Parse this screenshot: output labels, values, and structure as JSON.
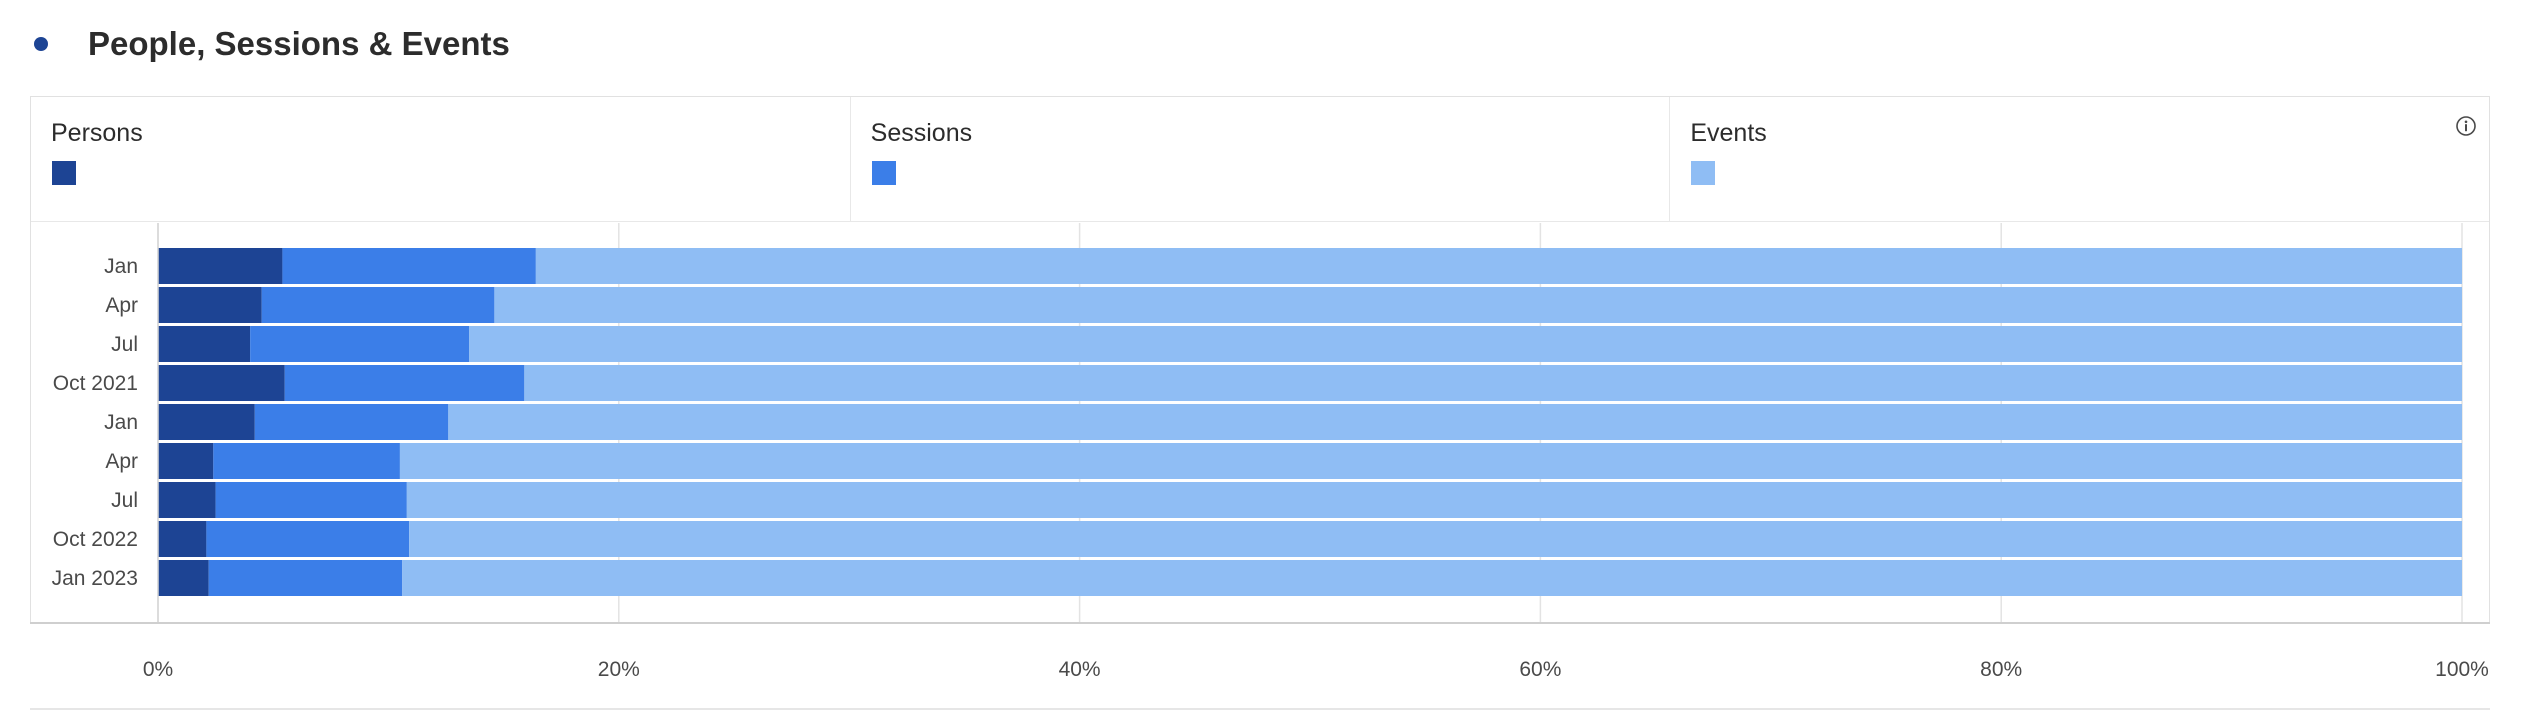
{
  "header": {
    "title": "People, Sessions & Events"
  },
  "legend": {
    "items": [
      {
        "label": "Persons",
        "color": "#1d4494"
      },
      {
        "label": "Sessions",
        "color": "#3b7ee8"
      },
      {
        "label": "Events",
        "color": "#8fbdf4"
      }
    ],
    "info_icon": "info-icon"
  },
  "chart_data": {
    "type": "bar",
    "orientation": "horizontal",
    "stacked": "percent",
    "categories": [
      "Jan",
      "Apr",
      "Jul",
      "Oct 2021",
      "Jan",
      "Apr",
      "Jul",
      "Oct 2022",
      "Jan 2023"
    ],
    "series": [
      {
        "name": "Persons",
        "color": "#1d4494",
        "values": [
          5.4,
          4.5,
          4.0,
          5.5,
          4.2,
          2.4,
          2.5,
          2.1,
          2.2
        ]
      },
      {
        "name": "Sessions",
        "color": "#3b7ee8",
        "values": [
          11.0,
          10.1,
          9.5,
          10.4,
          8.4,
          8.1,
          8.3,
          8.8,
          8.4
        ]
      },
      {
        "name": "Events",
        "color": "#8fbdf4",
        "values": [
          83.6,
          85.4,
          86.5,
          84.1,
          87.4,
          89.5,
          89.2,
          89.1,
          89.4
        ]
      }
    ],
    "x_ticks": [
      "0%",
      "20%",
      "40%",
      "60%",
      "80%",
      "100%"
    ],
    "xlim": [
      0,
      100
    ],
    "grid": true,
    "legend_position": "top"
  }
}
